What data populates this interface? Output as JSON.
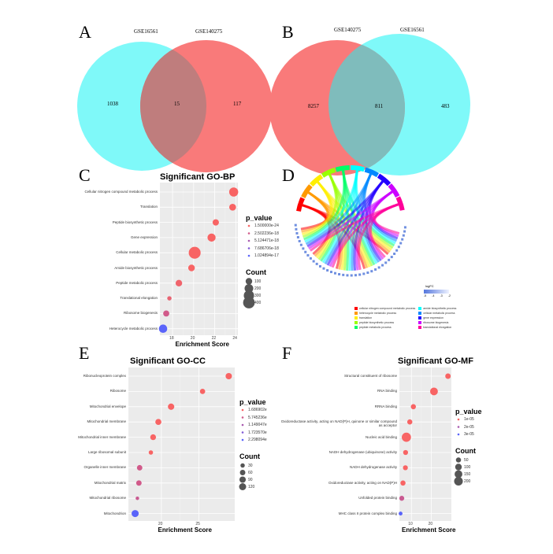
{
  "panels": {
    "A": "A",
    "B": "B",
    "C": "C",
    "D": "D",
    "E": "E",
    "F": "F"
  },
  "chart_data": [
    {
      "type": "venn",
      "panel": "A",
      "sets": [
        "GSE16561",
        "GSE140275"
      ],
      "values": {
        "only_GSE16561": 1038,
        "both": 15,
        "only_GSE140275": 117
      },
      "labels": [
        "1038",
        "15",
        "117"
      ],
      "colors": [
        "#7ff9f9",
        "#f97a7a"
      ]
    },
    {
      "type": "venn",
      "panel": "B",
      "sets": [
        "GSE140275",
        "GSE16561"
      ],
      "values": {
        "only_GSE140275": 8257,
        "both": 811,
        "only_GSE16561": 483
      },
      "labels": [
        "8257",
        "811",
        "483"
      ],
      "colors": [
        "#f97a7a",
        "#7ff9f9"
      ]
    },
    {
      "type": "scatter",
      "panel": "C",
      "title": "Significant GO-BP",
      "xlabel": "Enrichment Score",
      "xlim": [
        16.8,
        24.2
      ],
      "xticks": [
        "18",
        "20",
        "22",
        "24"
      ],
      "xtick_values": [
        18,
        20,
        22,
        24
      ],
      "categories": [
        "Cellular nitrogen compound metabolic process",
        "Translation",
        "Peptide biosynthetic process",
        "Gene expression",
        "Cellular metabolic process",
        "Amide biosynthetic process",
        "Peptide metabolic process",
        "Translational elongation",
        "Ribosome biogenesis",
        "Heterocycle metabolic process"
      ],
      "x": [
        23.8,
        23.7,
        22.1,
        21.7,
        20.1,
        19.8,
        18.6,
        17.7,
        17.4,
        17.1
      ],
      "count": [
        220,
        110,
        90,
        170,
        420,
        100,
        100,
        30,
        80,
        180
      ],
      "color_level": [
        0,
        0,
        0,
        0,
        0,
        0,
        0.05,
        0.1,
        0.25,
        1
      ],
      "legend_p": [
        "1.500000e-24",
        "2.502236e-18",
        "5.124471e-18",
        "7.686706e-18",
        "1.024894e-17"
      ],
      "legend_count": [
        "100",
        "200",
        "300",
        "400"
      ]
    },
    {
      "type": "scatter",
      "panel": "E",
      "title": "Significant GO-CC",
      "xlabel": "Enrichment Score",
      "xlim": [
        15.6,
        29.8
      ],
      "xticks": [
        "20",
        "25"
      ],
      "xtick_values": [
        20,
        25
      ],
      "categories": [
        "Ribonucleoprotein complex",
        "Ribosome",
        "Mitochondrial envelope",
        "Mitochondrial membrane",
        "Mitochondrial inner membrane",
        "Large ribosomal subunit",
        "Organelle inner membrane",
        "Mitochondrial matrix",
        "Mitochondrial ribosome",
        "Mitochondrion"
      ],
      "x": [
        29.0,
        25.5,
        21.3,
        19.6,
        18.9,
        18.6,
        17.1,
        17.0,
        16.8,
        16.5
      ],
      "count": [
        90,
        55,
        90,
        80,
        70,
        30,
        60,
        60,
        15,
        120
      ],
      "color_level": [
        0,
        0,
        0,
        0,
        0,
        0,
        0.25,
        0.25,
        0.3,
        1
      ],
      "legend_p": [
        "1.686902e",
        "5.745236e",
        "1.149047e",
        "1.723570e",
        "2.298094e"
      ],
      "legend_count": [
        "30",
        "60",
        "90",
        "120"
      ]
    },
    {
      "type": "scatter",
      "panel": "F",
      "title": "Significant GO-MF",
      "xlabel": "Enrichment Score",
      "xlim": [
        4,
        30
      ],
      "xticks": [
        "10",
        "20"
      ],
      "xtick_values": [
        10,
        20
      ],
      "categories": [
        "Structural constituent of ribosome",
        "RNA binding",
        "RRNA binding",
        "Oxidoreductase activity, acting on NAD(P)H, quinone or similar compound as acceptor",
        "Nucleic acid binding",
        "NADH dehydrogenase (ubiquinone) activity",
        "NADH dehydrogenase activity",
        "Oxidoreductase activity, acting on NAD(P)H",
        "Unfolded protein binding",
        "MHC class II protein complex binding"
      ],
      "x": [
        28.3,
        21.3,
        11.0,
        9.2,
        7.5,
        7.1,
        7.0,
        5.8,
        5.2,
        4.6
      ],
      "count": [
        60,
        150,
        50,
        50,
        230,
        45,
        45,
        50,
        45,
        20
      ],
      "color_level": [
        0,
        0,
        0,
        0,
        0,
        0,
        0,
        0,
        0.3,
        1
      ],
      "legend_p": [
        "1e-05",
        "2e-05",
        "3e-05"
      ],
      "legend_count": [
        "50",
        "100",
        "150",
        "200"
      ]
    }
  ],
  "chord": {
    "scale_title": "logFC",
    "scale_ticks": [
      "-5",
      "-4",
      "-3",
      "-2"
    ],
    "terms": [
      {
        "label": "cellular nitrogen compound metabolic process",
        "color": "#ff0000"
      },
      {
        "label": "heterocycle metabolic process",
        "color": "#ff9900"
      },
      {
        "label": "translation",
        "color": "#ffee00"
      },
      {
        "label": "peptide biosynthetic process",
        "color": "#99ff00"
      },
      {
        "label": "peptide metabolic process",
        "color": "#00ff66"
      },
      {
        "label": "amide biosynthetic process",
        "color": "#00ffff"
      },
      {
        "label": "cellular metabolic process",
        "color": "#0088ff"
      },
      {
        "label": "gene expression",
        "color": "#2200ff"
      },
      {
        "label": "ribosome biogenesis",
        "color": "#cc00ff"
      },
      {
        "label": "translational elongation",
        "color": "#ff0099"
      }
    ]
  }
}
